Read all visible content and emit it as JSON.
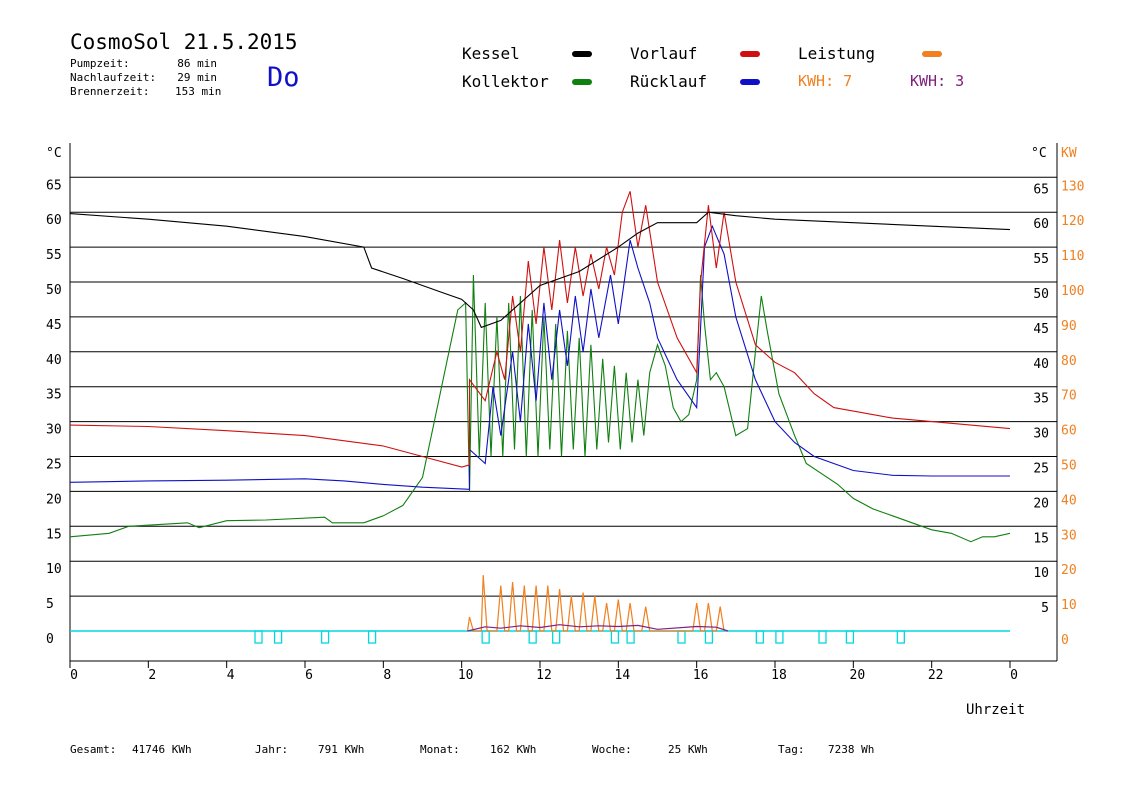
{
  "header": {
    "title": "CosmoSol 21.5.2015",
    "day": "Do",
    "stats": [
      {
        "label": "Pumpzeit:",
        "value": "86 min"
      },
      {
        "label": "Nachlaufzeit:",
        "value": "29 min"
      },
      {
        "label": "Brennerzeit:",
        "value": "153 min"
      }
    ]
  },
  "legend": {
    "kessel": "Kessel",
    "vorlauf": "Vorlauf",
    "leistung": "Leistung",
    "kollektor": "Kollektor",
    "ruecklauf": "Rücklauf",
    "kwh_orange": "KWH: 7",
    "kwh_purple": "KWH: 3"
  },
  "axes": {
    "left_unit": "°C",
    "right_unit": "°C",
    "kw_unit": "KW",
    "xlabel": "Uhrzeit"
  },
  "footer": {
    "gesamt_label": "Gesamt:",
    "gesamt_value": "41746 KWh",
    "jahr_label": "Jahr:",
    "jahr_value": "791 KWh",
    "monat_label": "Monat:",
    "monat_value": "162 KWh",
    "woche_label": "Woche:",
    "woche_value": "25 KWh",
    "tag_label": "Tag:",
    "tag_value": "7238 Wh"
  },
  "colors": {
    "kessel": "#000000",
    "vorlauf": "#d01010",
    "leistung": "#f08020",
    "kollektor": "#108010",
    "ruecklauf": "#1010c8",
    "kwh_purple": "#802080",
    "pump": "#00d8e0"
  },
  "chart_data": {
    "type": "line",
    "x_range": [
      0,
      24
    ],
    "y_range": [
      0,
      70
    ],
    "y2_range_kw": [
      0,
      140
    ],
    "x_ticks": [
      "0",
      "2",
      "4",
      "6",
      "8",
      "10",
      "12",
      "14",
      "16",
      "18",
      "20",
      "22",
      "0"
    ],
    "y_ticks_left": [
      "0",
      "5",
      "10",
      "15",
      "20",
      "25",
      "30",
      "35",
      "40",
      "45",
      "50",
      "55",
      "60",
      "65"
    ],
    "y_ticks_right": [
      "5",
      "10",
      "15",
      "20",
      "25",
      "30",
      "35",
      "40",
      "45",
      "50",
      "55",
      "60",
      "65"
    ],
    "y_ticks_kw": [
      "0",
      "10",
      "20",
      "30",
      "40",
      "50",
      "60",
      "70",
      "80",
      "90",
      "100",
      "110",
      "120",
      "130"
    ],
    "series": [
      {
        "name": "Kessel",
        "color_key": "kessel",
        "points": [
          [
            0,
            59.8
          ],
          [
            2,
            59
          ],
          [
            4,
            58
          ],
          [
            6,
            56.5
          ],
          [
            7.5,
            55
          ],
          [
            7.7,
            52
          ],
          [
            8.5,
            50.5
          ],
          [
            9.5,
            48.5
          ],
          [
            10,
            47.5
          ],
          [
            10.3,
            46
          ],
          [
            10.5,
            43.5
          ],
          [
            11,
            44.5
          ],
          [
            12,
            49.5
          ],
          [
            13,
            51.5
          ],
          [
            14,
            55
          ],
          [
            14.5,
            57
          ],
          [
            15,
            58.5
          ],
          [
            16,
            58.5
          ],
          [
            16.3,
            60
          ],
          [
            17,
            59.5
          ],
          [
            18,
            59
          ],
          [
            20,
            58.5
          ],
          [
            22,
            58
          ],
          [
            24,
            57.5
          ]
        ]
      },
      {
        "name": "Vorlauf",
        "color_key": "vorlauf",
        "points": [
          [
            0,
            29.5
          ],
          [
            2,
            29.3
          ],
          [
            4,
            28.7
          ],
          [
            6,
            28
          ],
          [
            8,
            26.5
          ],
          [
            9,
            25
          ],
          [
            10,
            23.5
          ],
          [
            10.2,
            23.8
          ],
          [
            10.2,
            36
          ],
          [
            10.6,
            33
          ],
          [
            10.9,
            40
          ],
          [
            11.1,
            36
          ],
          [
            11.3,
            48
          ],
          [
            11.5,
            40
          ],
          [
            11.7,
            53
          ],
          [
            11.9,
            44
          ],
          [
            12.1,
            55
          ],
          [
            12.3,
            46
          ],
          [
            12.5,
            56
          ],
          [
            12.7,
            47
          ],
          [
            12.9,
            55
          ],
          [
            13.1,
            48
          ],
          [
            13.3,
            54
          ],
          [
            13.5,
            49
          ],
          [
            13.7,
            55
          ],
          [
            13.9,
            51
          ],
          [
            14.1,
            60
          ],
          [
            14.3,
            63
          ],
          [
            14.5,
            55
          ],
          [
            14.7,
            61
          ],
          [
            15,
            50
          ],
          [
            15.5,
            42
          ],
          [
            16,
            37
          ],
          [
            16.1,
            50
          ],
          [
            16.3,
            61
          ],
          [
            16.5,
            52
          ],
          [
            16.7,
            60
          ],
          [
            17,
            50
          ],
          [
            17.5,
            41
          ],
          [
            18,
            38.5
          ],
          [
            18.5,
            37
          ],
          [
            19,
            34
          ],
          [
            19.5,
            32
          ],
          [
            20,
            31.5
          ],
          [
            21,
            30.5
          ],
          [
            22,
            30
          ],
          [
            24,
            29
          ]
        ]
      },
      {
        "name": "Rücklauf",
        "color_key": "ruecklauf",
        "points": [
          [
            0,
            21.3
          ],
          [
            2,
            21.5
          ],
          [
            4,
            21.6
          ],
          [
            6,
            21.8
          ],
          [
            7,
            21.5
          ],
          [
            8,
            21
          ],
          [
            9,
            20.6
          ],
          [
            10.2,
            20.3
          ],
          [
            10.2,
            26
          ],
          [
            10.6,
            24
          ],
          [
            10.8,
            35
          ],
          [
            11,
            28
          ],
          [
            11.3,
            40
          ],
          [
            11.5,
            30
          ],
          [
            11.7,
            44
          ],
          [
            11.9,
            33
          ],
          [
            12.1,
            47
          ],
          [
            12.3,
            36
          ],
          [
            12.5,
            46
          ],
          [
            12.7,
            38
          ],
          [
            12.9,
            48
          ],
          [
            13.1,
            40
          ],
          [
            13.3,
            49
          ],
          [
            13.5,
            42
          ],
          [
            13.8,
            51
          ],
          [
            14,
            44
          ],
          [
            14.3,
            56
          ],
          [
            14.5,
            52
          ],
          [
            14.8,
            47
          ],
          [
            15,
            42
          ],
          [
            15.5,
            36
          ],
          [
            16,
            32
          ],
          [
            16.2,
            55
          ],
          [
            16.4,
            58
          ],
          [
            16.7,
            54
          ],
          [
            17,
            45
          ],
          [
            17.5,
            36
          ],
          [
            18,
            30
          ],
          [
            18.5,
            27
          ],
          [
            19,
            25
          ],
          [
            20,
            23
          ],
          [
            21,
            22.3
          ],
          [
            22,
            22.2
          ],
          [
            24,
            22.2
          ]
        ]
      },
      {
        "name": "Kollektor",
        "color_key": "kollektor",
        "points": [
          [
            0,
            13.5
          ],
          [
            1,
            14
          ],
          [
            1.5,
            15
          ],
          [
            3,
            15.5
          ],
          [
            3.3,
            14.8
          ],
          [
            4,
            15.8
          ],
          [
            5,
            15.9
          ],
          [
            6.5,
            16.3
          ],
          [
            6.7,
            15.5
          ],
          [
            7.5,
            15.5
          ],
          [
            8,
            16.5
          ],
          [
            8.5,
            18
          ],
          [
            9,
            22
          ],
          [
            9.3,
            30
          ],
          [
            9.6,
            38
          ],
          [
            9.9,
            46
          ],
          [
            10.1,
            47
          ],
          [
            10.2,
            20
          ],
          [
            10.3,
            51
          ],
          [
            10.45,
            25
          ],
          [
            10.6,
            47
          ],
          [
            10.75,
            25
          ],
          [
            10.9,
            45
          ],
          [
            11.05,
            25
          ],
          [
            11.2,
            47
          ],
          [
            11.35,
            26
          ],
          [
            11.5,
            48
          ],
          [
            11.65,
            25
          ],
          [
            11.8,
            46
          ],
          [
            11.95,
            25
          ],
          [
            12.1,
            45
          ],
          [
            12.25,
            26
          ],
          [
            12.4,
            44
          ],
          [
            12.55,
            25
          ],
          [
            12.7,
            43
          ],
          [
            12.85,
            26
          ],
          [
            13,
            42
          ],
          [
            13.15,
            25
          ],
          [
            13.3,
            41
          ],
          [
            13.45,
            26
          ],
          [
            13.6,
            39
          ],
          [
            13.75,
            27
          ],
          [
            13.9,
            38
          ],
          [
            14.05,
            26
          ],
          [
            14.2,
            37
          ],
          [
            14.35,
            27
          ],
          [
            14.5,
            36
          ],
          [
            14.65,
            28
          ],
          [
            14.8,
            37
          ],
          [
            15,
            41
          ],
          [
            15.2,
            38
          ],
          [
            15.4,
            32
          ],
          [
            15.6,
            30
          ],
          [
            15.8,
            31
          ],
          [
            16,
            36
          ],
          [
            16.1,
            51
          ],
          [
            16.2,
            44
          ],
          [
            16.35,
            36
          ],
          [
            16.5,
            37
          ],
          [
            16.7,
            35
          ],
          [
            17,
            28
          ],
          [
            17.3,
            29
          ],
          [
            17.5,
            40
          ],
          [
            17.65,
            48
          ],
          [
            17.8,
            43
          ],
          [
            18.1,
            34
          ],
          [
            18.5,
            28
          ],
          [
            18.8,
            24
          ],
          [
            19.2,
            22.5
          ],
          [
            19.6,
            21
          ],
          [
            20,
            19
          ],
          [
            20.5,
            17.5
          ],
          [
            21,
            16.5
          ],
          [
            21.5,
            15.5
          ],
          [
            22,
            14.5
          ],
          [
            22.5,
            14
          ],
          [
            23,
            12.8
          ],
          [
            23.3,
            13.5
          ],
          [
            23.6,
            13.5
          ],
          [
            24,
            14
          ]
        ]
      }
    ],
    "leistung_kw": [
      [
        10.15,
        0
      ],
      [
        10.2,
        4
      ],
      [
        10.3,
        0
      ],
      [
        10.5,
        0
      ],
      [
        10.55,
        16
      ],
      [
        10.65,
        0
      ],
      [
        10.9,
        0
      ],
      [
        11,
        13
      ],
      [
        11.1,
        0
      ],
      [
        11.2,
        0
      ],
      [
        11.3,
        14
      ],
      [
        11.4,
        0
      ],
      [
        11.5,
        0
      ],
      [
        11.6,
        13
      ],
      [
        11.7,
        0
      ],
      [
        11.8,
        0
      ],
      [
        11.9,
        13
      ],
      [
        12,
        0
      ],
      [
        12.1,
        0
      ],
      [
        12.2,
        13
      ],
      [
        12.3,
        0
      ],
      [
        12.4,
        0
      ],
      [
        12.5,
        12
      ],
      [
        12.6,
        0
      ],
      [
        12.7,
        0
      ],
      [
        12.8,
        10
      ],
      [
        12.9,
        0
      ],
      [
        13,
        0
      ],
      [
        13.1,
        11
      ],
      [
        13.2,
        0
      ],
      [
        13.3,
        0
      ],
      [
        13.4,
        10
      ],
      [
        13.5,
        0
      ],
      [
        13.6,
        0
      ],
      [
        13.7,
        8
      ],
      [
        13.8,
        0
      ],
      [
        13.9,
        0
      ],
      [
        14,
        9
      ],
      [
        14.1,
        0
      ],
      [
        14.2,
        0
      ],
      [
        14.3,
        8
      ],
      [
        14.4,
        0
      ],
      [
        14.6,
        0
      ],
      [
        14.7,
        7
      ],
      [
        14.8,
        0
      ],
      [
        15.9,
        0
      ],
      [
        16,
        8
      ],
      [
        16.1,
        0
      ],
      [
        16.2,
        0
      ],
      [
        16.3,
        8
      ],
      [
        16.4,
        0
      ],
      [
        16.5,
        0
      ],
      [
        16.6,
        7
      ],
      [
        16.7,
        0
      ]
    ],
    "kwh_purple": [
      [
        10.15,
        0
      ],
      [
        10.6,
        1.2
      ],
      [
        11,
        0.8
      ],
      [
        11.5,
        1.5
      ],
      [
        12,
        1
      ],
      [
        12.5,
        1.8
      ],
      [
        13,
        1.2
      ],
      [
        13.5,
        1.5
      ],
      [
        14,
        1.3
      ],
      [
        14.5,
        1.6
      ],
      [
        15,
        0.5
      ],
      [
        16,
        1.3
      ],
      [
        16.5,
        1.1
      ],
      [
        16.8,
        0
      ]
    ],
    "pump_markers_h": [
      4.8,
      5.3,
      6.5,
      7.7,
      10.6,
      11.8,
      12.4,
      13.9,
      14.3,
      15.6,
      16.3,
      17.6,
      18.1,
      19.2,
      19.9,
      21.2
    ]
  }
}
